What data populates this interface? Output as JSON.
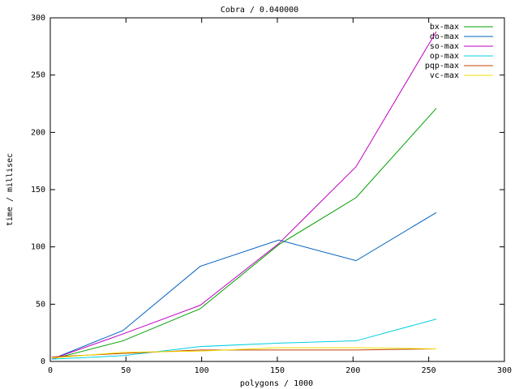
{
  "chart_data": {
    "type": "line",
    "title": "Cobra / 0.040000",
    "x_label": "polygons / 1000",
    "y_label": "time / millisec",
    "x": [
      1,
      48,
      99,
      151,
      202,
      255
    ],
    "series": [
      {
        "name": "bx-max",
        "color": "#00a000",
        "values": [
          2,
          18,
          46,
          102,
          143,
          221
        ]
      },
      {
        "name": "do-max",
        "color": "#0060c0",
        "values": [
          2,
          27,
          83,
          106,
          88,
          130
        ]
      },
      {
        "name": "so-max",
        "color": "#c000c0",
        "values": [
          2,
          24,
          49,
          103,
          170,
          288
        ]
      },
      {
        "name": "op-max",
        "color": "#00d0e0",
        "values": [
          2,
          5,
          13,
          16,
          18,
          37
        ]
      },
      {
        "name": "pqp-max",
        "color": "#c04000",
        "values": [
          4,
          7,
          10,
          10,
          10,
          11
        ]
      },
      {
        "name": "vc-max",
        "color": "#f0e000",
        "values": [
          3,
          8,
          9,
          12,
          12,
          11
        ]
      }
    ],
    "xlim": [
      0,
      300
    ],
    "xticks": [
      0,
      50,
      100,
      150,
      200,
      250,
      300
    ],
    "ylim": [
      0,
      300
    ],
    "yticks": [
      0,
      50,
      100,
      150,
      200,
      250,
      300
    ],
    "grid": false,
    "legend": "top-right"
  }
}
